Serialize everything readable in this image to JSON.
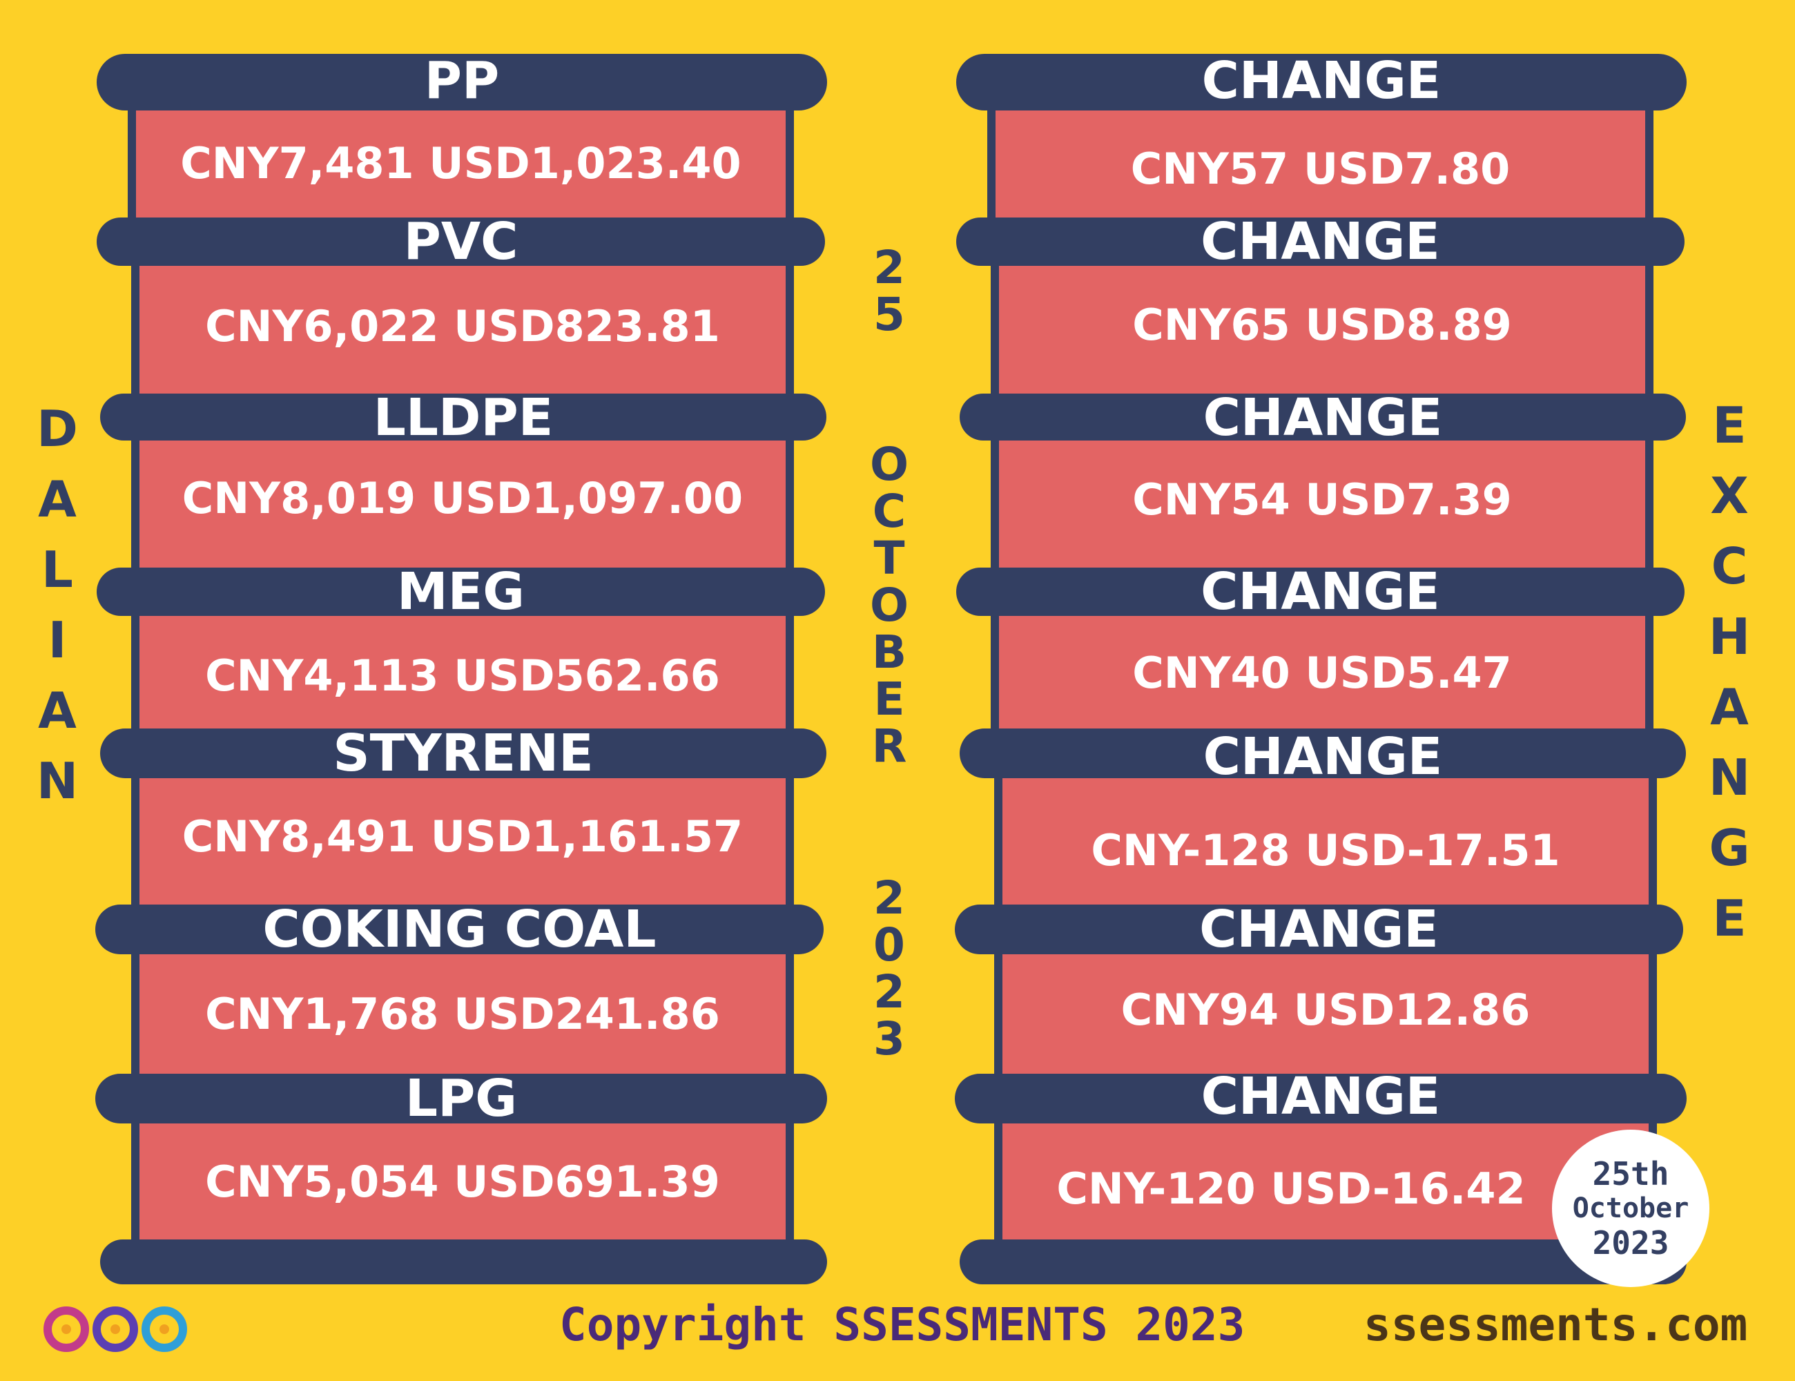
{
  "left_label": "DALIAN",
  "right_label": "EXCHANGE",
  "center_date": {
    "day": "25",
    "month": "OCTOBER",
    "year": "2023"
  },
  "commodities": [
    {
      "name": "PP",
      "price": "CNY7,481  USD1,023.40"
    },
    {
      "name": "PVC",
      "price": "CNY6,022  USD823.81"
    },
    {
      "name": "LLDPE",
      "price": "CNY8,019  USD1,097.00"
    },
    {
      "name": "MEG",
      "price": "CNY4,113  USD562.66"
    },
    {
      "name": "STYRENE",
      "price": "CNY8,491  USD1,161.57"
    },
    {
      "name": "COKING COAL",
      "price": "CNY1,768  USD241.86"
    },
    {
      "name": "LPG",
      "price": "CNY5,054  USD691.39"
    }
  ],
  "changes": [
    {
      "label": "CHANGE",
      "value": "CNY57  USD7.80"
    },
    {
      "label": "CHANGE",
      "value": "CNY65  USD8.89"
    },
    {
      "label": "CHANGE",
      "value": "CNY54  USD7.39"
    },
    {
      "label": "CHANGE",
      "value": "CNY40  USD5.47"
    },
    {
      "label": "CHANGE",
      "value": "CNY-128  USD-17.51"
    },
    {
      "label": "CHANGE",
      "value": "CNY94  USD12.86"
    },
    {
      "label": "CHANGE",
      "value": "CNY-120  USD-16.42"
    }
  ],
  "stamp": {
    "line1": "25th",
    "line2": "October",
    "line3": "2023"
  },
  "footer": {
    "copyright": "Copyright SSESSMENTS 2023",
    "site": "ssessments.com"
  },
  "colors": {
    "background": "#fdd027",
    "band": "#333f62",
    "panel": "#e36464",
    "text": "#ffffff"
  }
}
